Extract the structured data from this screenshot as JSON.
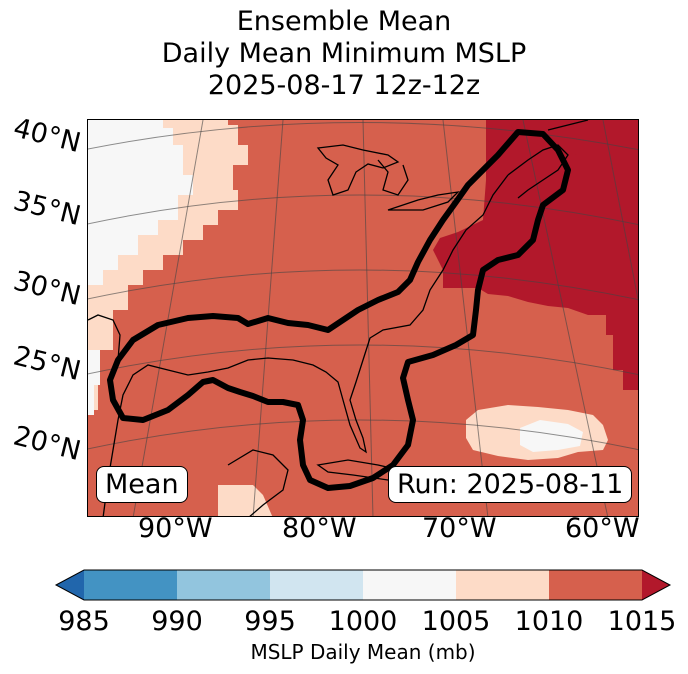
{
  "title": {
    "line1": "Ensemble Mean",
    "line2": "Daily Mean Minimum MSLP",
    "line3": "2025-08-17 12z-12z"
  },
  "map": {
    "lat_labels": [
      "40°N",
      "35°N",
      "30°N",
      "25°N",
      "20°N"
    ],
    "lon_labels": [
      "90°W",
      "80°W",
      "70°W",
      "60°W"
    ],
    "left_box_text": "Mean",
    "right_box_text": "Run: 2025-08-11"
  },
  "colorbar": {
    "ticks": [
      "985",
      "990",
      "995",
      "1000",
      "1005",
      "1010",
      "1015"
    ],
    "label": "MSLP Daily Mean (mb)",
    "colors": {
      "under": "#2166ac",
      "c985_990": "#4393c3",
      "c990_995": "#92c5de",
      "c995_1000": "#d1e5f0",
      "c1000_1005": "#f7f7f7",
      "c1005_1010": "#fddbc7",
      "c1010_1015": "#d6604d",
      "over": "#b2182b"
    }
  }
}
